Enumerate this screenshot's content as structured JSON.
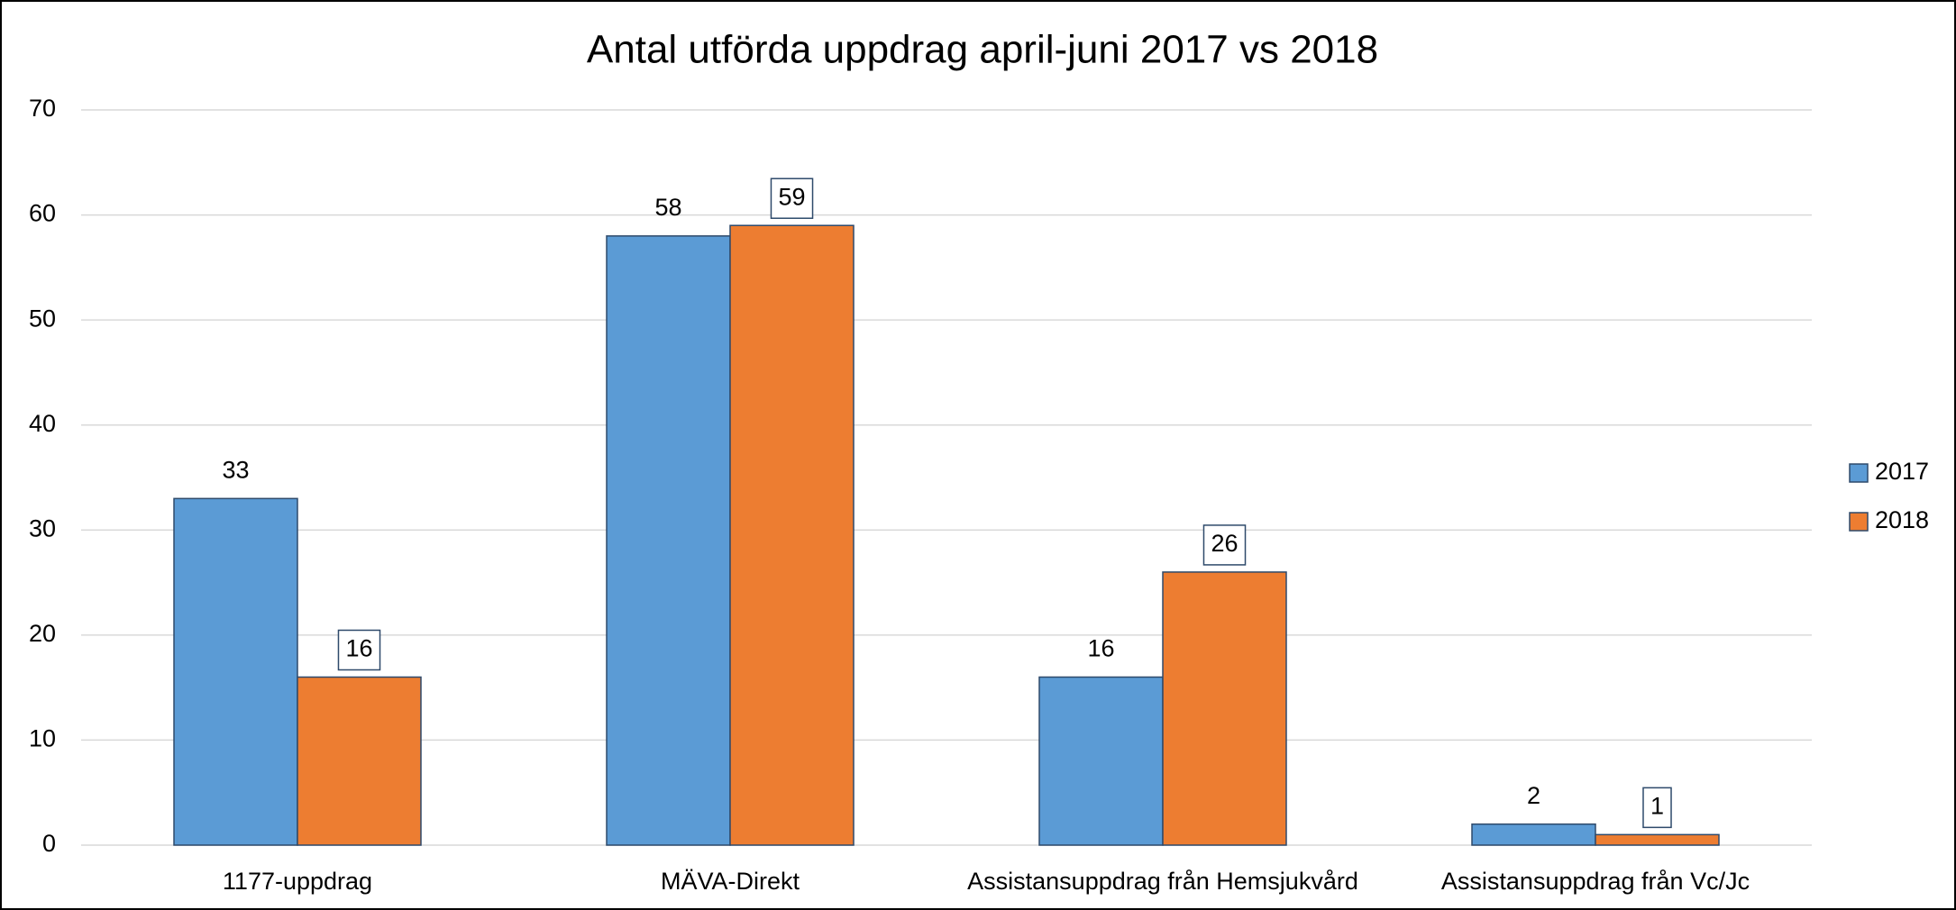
{
  "chart_data": {
    "type": "bar",
    "title": "Antal utförda uppdrag april-juni 2017 vs 2018",
    "categories": [
      "1177-uppdrag",
      "MÄVA-Direkt",
      "Assistansuppdrag från Hemsjukvård",
      "Assistansuppdrag från Vc/Jc"
    ],
    "series": [
      {
        "name": "2017",
        "color": "#5b9bd5",
        "values": [
          33,
          58,
          16,
          2
        ]
      },
      {
        "name": "2018",
        "color": "#ed7d31",
        "values": [
          16,
          59,
          26,
          1
        ]
      }
    ],
    "ylim": [
      0,
      70
    ],
    "yticks": [
      0,
      10,
      20,
      30,
      40,
      50,
      60,
      70
    ],
    "grid": true,
    "legend": "right"
  }
}
